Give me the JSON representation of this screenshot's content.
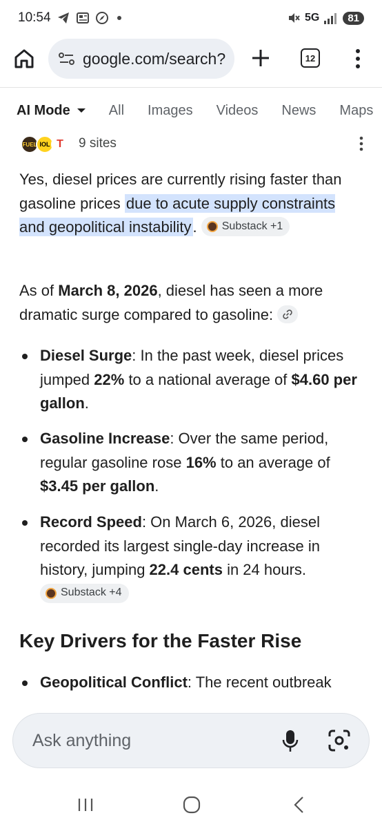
{
  "status_bar": {
    "time": "10:54",
    "network": "5G",
    "battery": "81"
  },
  "browser": {
    "url": "google.com/search?",
    "tab_count": "12"
  },
  "search_tabs": [
    "AI Mode",
    "All",
    "Images",
    "Videos",
    "News",
    "Maps"
  ],
  "sources": {
    "count_label": "9 sites",
    "favicon_labels": [
      "FUEL",
      "IOL",
      "T"
    ]
  },
  "answer": {
    "p1_plain": "Yes, diesel prices are currently rising faster than gasoline prices ",
    "p1_highlight": "due to acute supply constraints and geopolitical instability",
    "p1_end": ".",
    "p1_chip": "Substack +1",
    "p2_start": "As of ",
    "p2_bold": "March 8, 2026",
    "p2_end": ", diesel has seen a more dramatic surge compared to gasoline:",
    "bullets": [
      {
        "title": "Diesel Surge",
        "t1": ": In the past week, diesel prices jumped ",
        "b1": "22%",
        "t2": " to a national average of ",
        "b2": "$4.60 per gallon",
        "t3": "."
      },
      {
        "title": "Gasoline Increase",
        "t1": ": Over the same period, regular gasoline rose ",
        "b1": "16%",
        "t2": " to an average of ",
        "b2": "$3.45 per gallon",
        "t3": "."
      },
      {
        "title": "Record Speed",
        "t1": ": On March 6, 2026, diesel recorded its largest single-day increase in history, jumping ",
        "b1": "22.4 cents",
        "t2": " in 24 hours.",
        "chip": "Substack +4"
      }
    ],
    "heading": "Key Drivers for the Faster Rise",
    "bullet4": {
      "title": "Geopolitical Conflict",
      "text": ": The recent outbreak"
    }
  },
  "ask_bar": {
    "placeholder": "Ask anything"
  }
}
